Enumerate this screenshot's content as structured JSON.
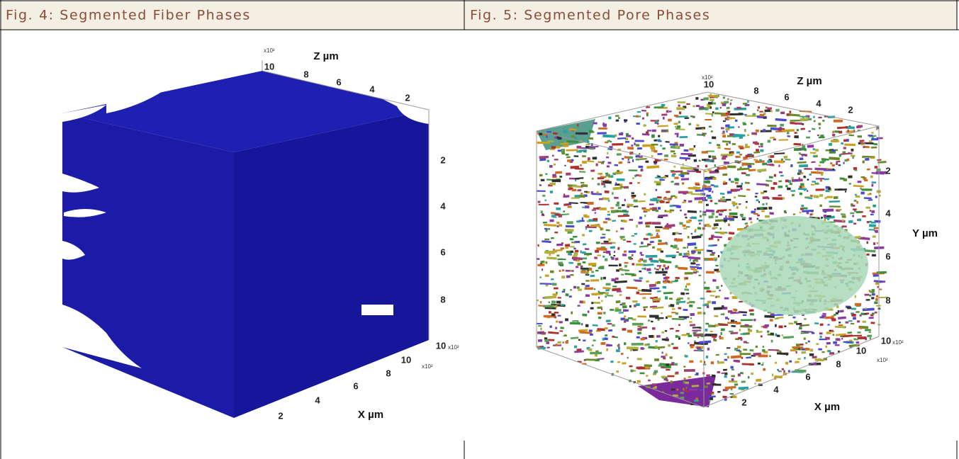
{
  "panels": [
    {
      "caption": "Fig. 4: Segmented Fiber Phases",
      "axes": {
        "z": {
          "label": "Z µm",
          "ticks": [
            "10",
            "8",
            "6",
            "4",
            "2"
          ],
          "multiplier": "x10²"
        },
        "y": {
          "ticks": [
            "2",
            "4",
            "6",
            "8",
            "10"
          ],
          "multiplier": "x10²"
        },
        "x": {
          "label": "X µm",
          "ticks": [
            "2",
            "4",
            "6",
            "8",
            "10"
          ],
          "multiplier": "x10²"
        }
      }
    },
    {
      "caption": "Fig. 5: Segmented Pore Phases",
      "axes": {
        "z": {
          "label": "Z µm",
          "ticks": [
            "10",
            "8",
            "6",
            "4",
            "2"
          ],
          "multiplier": "x10²"
        },
        "y": {
          "label": "Y µm",
          "ticks": [
            "2",
            "4",
            "6",
            "8",
            "10"
          ],
          "multiplier": "x10²"
        },
        "x": {
          "label": "X µm",
          "ticks": [
            "2",
            "4",
            "6",
            "8",
            "10"
          ],
          "multiplier": "x10²"
        }
      }
    }
  ]
}
